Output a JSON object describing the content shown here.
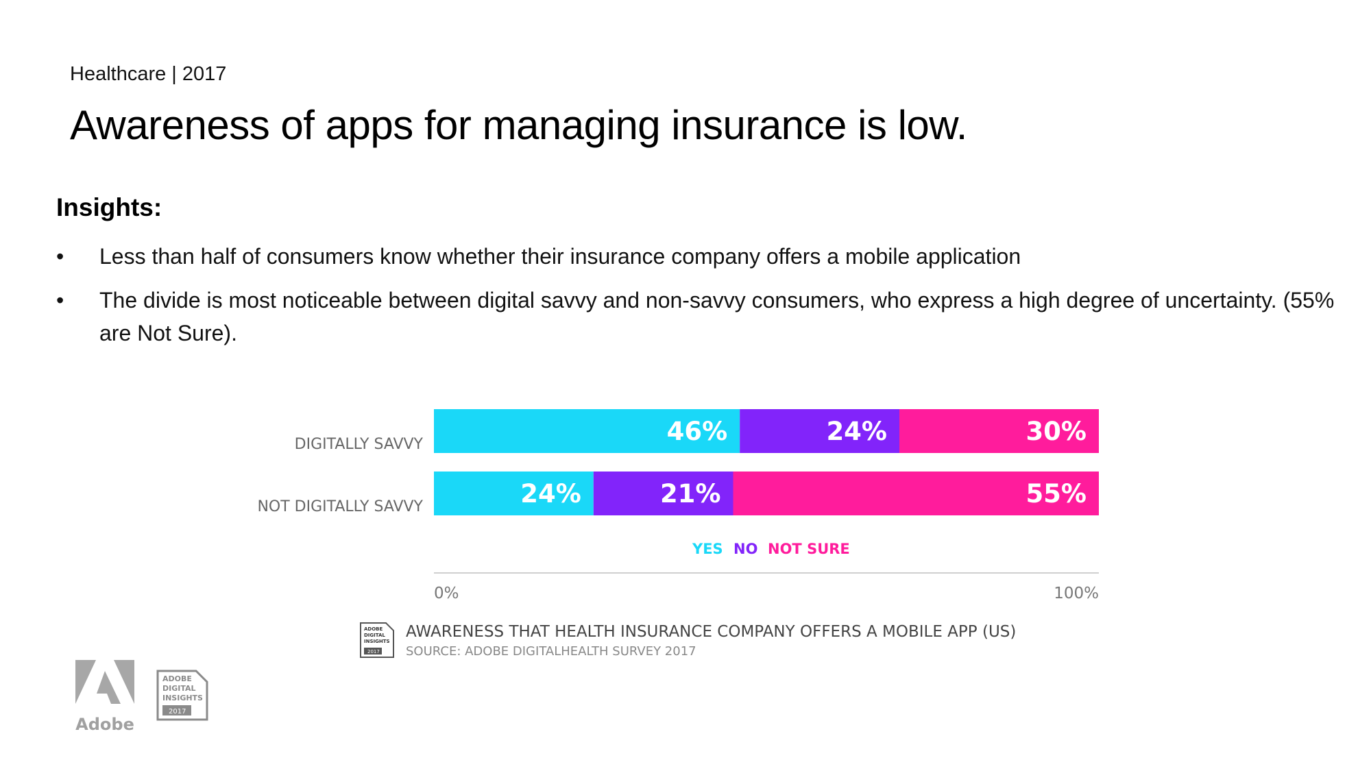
{
  "header": {
    "kicker": "Healthcare | 2017",
    "title": "Awareness of apps for managing insurance is low."
  },
  "insights": {
    "heading": "Insights:",
    "bullet_symbol": "•",
    "items": [
      "Less than half of consumers know whether their insurance company offers a mobile application",
      "The divide is most noticeable between digital savvy and non-savvy consumers, who express a high degree of uncertainty. (55% are Not Sure)."
    ]
  },
  "chart_data": {
    "type": "bar",
    "orientation": "horizontal",
    "stacked": true,
    "title": "AWARENESS THAT HEALTH INSURANCE COMPANY OFFERS A MOBILE APP (US)",
    "source": "SOURCE: ADOBE DIGITALHEALTH SURVEY 2017",
    "categories": [
      "DIGITALLY SAVVY",
      "NOT DIGITALLY SAVVY"
    ],
    "series": [
      {
        "name": "YES",
        "values": [
          46,
          24
        ],
        "color": "#1ad8f8"
      },
      {
        "name": "NO",
        "values": [
          24,
          21
        ],
        "color": "#8224fa"
      },
      {
        "name": "NOT SURE",
        "values": [
          30,
          55
        ],
        "color": "#ff1c9c"
      }
    ],
    "value_suffix": "%",
    "xlim": [
      0,
      100
    ],
    "x_tick_labels": [
      "0%",
      "100%"
    ],
    "legend_position": "bottom-center",
    "grid": false
  },
  "branding": {
    "badge_lines": [
      "ADOBE",
      "DIGITAL",
      "INSIGHTS",
      "2017"
    ],
    "adobe_wordmark": "Adobe"
  }
}
